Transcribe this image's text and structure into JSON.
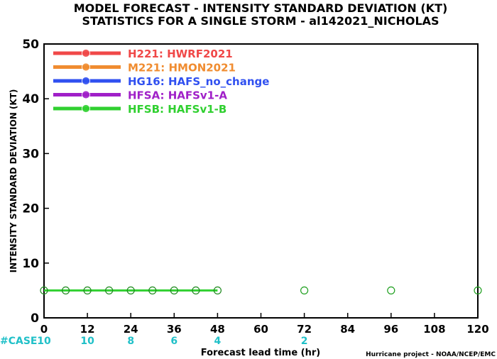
{
  "chart_data": {
    "type": "line",
    "title": "MODEL FORECAST - INTENSITY STANDARD DEVIATION (KT)",
    "subtitle": "STATISTICS FOR A SINGLE STORM - al142021_NICHOLAS",
    "xlabel": "Forecast lead time (hr)",
    "ylabel": "INTENSITY STANDARD DEVIATION (KT)",
    "xlim": [
      0,
      120
    ],
    "ylim": [
      0,
      50
    ],
    "x_ticks": [
      0,
      12,
      24,
      36,
      48,
      60,
      72,
      84,
      96,
      108,
      120
    ],
    "y_ticks": [
      0,
      10,
      20,
      30,
      40,
      50
    ],
    "grid": false,
    "legend_position": "top-left",
    "series": [
      {
        "name": "H221: HWRF2021",
        "color": "#f04848",
        "x": [],
        "values": []
      },
      {
        "name": "M221: HMON2021",
        "color": "#f08c30",
        "x": [],
        "values": []
      },
      {
        "name": "HG16: HAFS_no_change",
        "color": "#3050f0",
        "x": [],
        "values": []
      },
      {
        "name": "HFSA: HAFSv1-A",
        "color": "#a020c8",
        "x": [],
        "values": []
      },
      {
        "name": "HFSB: HAFSv1-B",
        "color": "#30d030",
        "x": [
          0,
          6,
          12,
          18,
          24,
          30,
          36,
          42,
          48
        ],
        "values": [
          5,
          5,
          5,
          5,
          5,
          5,
          5,
          5,
          5
        ]
      }
    ],
    "reference_points": {
      "color": "#20a020",
      "x": [
        72,
        96,
        120
      ],
      "values": [
        5,
        5,
        5
      ]
    },
    "case_counts": {
      "label": "#CASE",
      "x": [
        0,
        12,
        24,
        36,
        48,
        72
      ],
      "values": [
        "10",
        "10",
        "8",
        "6",
        "4",
        "2"
      ],
      "color": "#20c0c8"
    }
  },
  "footer": "Hurricane project - NOAA/NCEP/EMC"
}
